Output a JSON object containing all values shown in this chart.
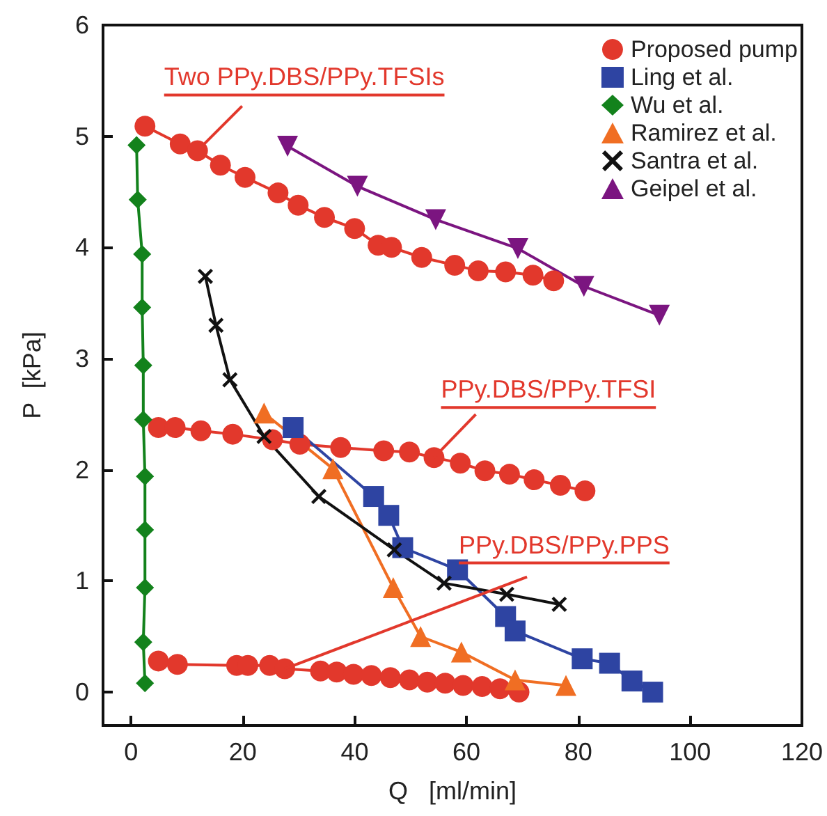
{
  "chart_data": {
    "type": "line",
    "xlabel": "Q   [ml/min]",
    "ylabel": "P  [kPa]",
    "xlim": [
      -5,
      120
    ],
    "xticks": [
      0,
      20,
      40,
      60,
      80,
      100,
      120
    ],
    "ylim": [
      -0.3,
      6
    ],
    "yticks": [
      0,
      1,
      2,
      3,
      4,
      5,
      6
    ],
    "grid": false,
    "legend": "top right",
    "series": [
      {
        "name": "Proposed pump",
        "color": "#e2382c",
        "marker": "circle",
        "x": [
          2.5,
          8.8,
          11.9,
          16.0,
          20.4,
          26.3,
          29.9,
          34.6,
          40.0,
          44.2,
          46.6,
          52.0,
          57.9,
          62.1,
          67.0,
          71.9,
          75.6
        ],
        "values": [
          5.09,
          4.93,
          4.87,
          4.74,
          4.63,
          4.49,
          4.38,
          4.27,
          4.17,
          4.02,
          4.0,
          3.91,
          3.84,
          3.79,
          3.78,
          3.75,
          3.7
        ]
      },
      {
        "color": "#e2382c",
        "marker": "circle",
        "x": [
          4.9,
          7.9,
          12.5,
          18.2,
          25.3,
          30.2,
          37.5,
          45.2,
          49.8,
          54.2,
          58.9,
          63.3,
          67.7,
          72.1,
          76.8,
          81.2
        ],
        "values": [
          2.38,
          2.38,
          2.35,
          2.32,
          2.27,
          2.23,
          2.2,
          2.17,
          2.16,
          2.11,
          2.06,
          1.99,
          1.96,
          1.91,
          1.86,
          1.81
        ]
      },
      {
        "color": "#e2382c",
        "marker": "circle",
        "x": [
          4.9,
          8.3,
          18.9,
          20.9,
          24.8,
          27.5,
          33.9,
          36.8,
          39.8,
          43.0,
          46.4,
          49.8,
          53.0,
          56.2,
          59.4,
          62.8,
          66.0,
          69.4
        ],
        "values": [
          0.28,
          0.25,
          0.24,
          0.24,
          0.24,
          0.21,
          0.19,
          0.18,
          0.16,
          0.15,
          0.13,
          0.11,
          0.09,
          0.08,
          0.06,
          0.05,
          0.03,
          0.0
        ]
      },
      {
        "name": "Ling et al.",
        "color": "#2e44a2",
        "marker": "square",
        "x": [
          29.0,
          43.4,
          46.1,
          48.6,
          58.4,
          67.0,
          68.7,
          80.7,
          85.6,
          89.6,
          93.3
        ],
        "values": [
          2.38,
          1.76,
          1.59,
          1.3,
          1.1,
          0.68,
          0.55,
          0.3,
          0.26,
          0.1,
          0.0
        ]
      },
      {
        "name": "Wu et al.",
        "color": "#13821c",
        "marker": "diamond",
        "x": [
          1.0,
          1.2,
          2.0,
          2.0,
          2.2,
          2.2,
          2.5,
          2.5,
          2.5,
          2.2,
          2.5
        ],
        "values": [
          4.92,
          4.43,
          3.94,
          3.46,
          2.94,
          2.45,
          1.94,
          1.46,
          0.94,
          0.45,
          0.08
        ]
      },
      {
        "name": "Ramirez et al.",
        "color": "#f06e23",
        "marker": "triangle",
        "x": [
          23.8,
          36.1,
          46.9,
          51.8,
          59.1,
          68.7,
          77.8
        ],
        "values": [
          2.51,
          2.01,
          0.94,
          0.5,
          0.36,
          0.11,
          0.06
        ]
      },
      {
        "name": "Santra et al.",
        "color": "#111111",
        "marker": "cross",
        "x": [
          13.3,
          15.2,
          17.7,
          23.8,
          33.6,
          47.1,
          56.0,
          67.2,
          76.6
        ],
        "values": [
          3.74,
          3.3,
          2.81,
          2.3,
          1.76,
          1.28,
          0.98,
          0.88,
          0.79
        ]
      },
      {
        "name": "Geipel et al.",
        "color": "#7b1580",
        "marker": "triangle-down",
        "x": [
          28.0,
          40.5,
          54.5,
          69.2,
          81.0,
          94.5
        ],
        "values": [
          4.91,
          4.55,
          4.25,
          3.99,
          3.65,
          3.39
        ]
      }
    ],
    "annotations": [
      {
        "text": "Two PPy.DBS/PPy.TFSIs",
        "x": 11.9,
        "y": 4.87
      },
      {
        "text": "PPy.DBS/PPy.TFSI",
        "x": 54.2,
        "y": 2.11
      },
      {
        "text": "PPy.DBS/PPy.PPS",
        "x": 27.5,
        "y": 0.21
      }
    ]
  }
}
